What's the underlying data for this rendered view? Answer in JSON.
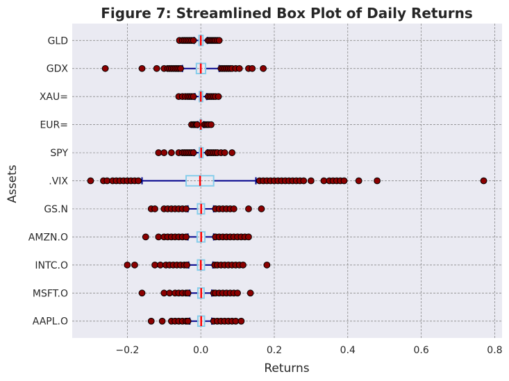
{
  "chart_data": {
    "type": "boxplot",
    "orientation": "horizontal",
    "title": "Figure 7: Streamlined Box Plot of Daily Returns",
    "xlabel": "Returns",
    "ylabel": "Assets",
    "xlim": [
      -0.35,
      0.82
    ],
    "xticks": [
      -0.2,
      0.0,
      0.2,
      0.4,
      0.6,
      0.8
    ],
    "xtick_labels": [
      "−0.2",
      "0.0",
      "0.2",
      "0.4",
      "0.6",
      "0.8"
    ],
    "grid": true,
    "categories": [
      "GLD",
      "GDX",
      "XAU=",
      "EUR=",
      "SPY",
      ".VIX",
      "GS.N",
      "AMZN.O",
      "INTC.O",
      "MSFT.O",
      "AAPL.O"
    ],
    "colors": {
      "plot_background": "#eaeaf2",
      "grid": "#7a7a7a",
      "box": "#87ceeb",
      "whisker": "#00008b",
      "median": "#ff0000",
      "outlier_fill": "#8b0000",
      "outlier_edge": "#000000"
    },
    "boxes": [
      {
        "name": "GLD",
        "q1": -0.005,
        "median": 0.0,
        "q3": 0.006,
        "whislo": -0.018,
        "whishi": 0.018,
        "outliers": [
          -0.058,
          -0.05,
          -0.045,
          -0.04,
          -0.035,
          -0.03,
          -0.025,
          -0.02,
          0.02,
          0.024,
          0.028,
          0.032,
          0.036,
          0.04,
          0.045,
          0.05
        ]
      },
      {
        "name": "GDX",
        "q1": -0.012,
        "median": 0.0,
        "q3": 0.013,
        "whislo": -0.05,
        "whishi": 0.05,
        "outliers": [
          -0.26,
          -0.16,
          -0.12,
          -0.1,
          -0.09,
          -0.085,
          -0.08,
          -0.075,
          -0.07,
          -0.065,
          -0.06,
          -0.055,
          0.055,
          0.06,
          0.065,
          0.07,
          0.075,
          0.08,
          0.085,
          0.095,
          0.105,
          0.13,
          0.14,
          0.17
        ]
      },
      {
        "name": "XAU=",
        "q1": -0.004,
        "median": 0.0,
        "q3": 0.005,
        "whislo": -0.016,
        "whishi": 0.016,
        "outliers": [
          -0.06,
          -0.05,
          -0.042,
          -0.035,
          -0.03,
          -0.025,
          -0.02,
          0.02,
          0.025,
          0.03,
          0.035,
          0.04,
          0.048
        ]
      },
      {
        "name": "EUR=",
        "q1": -0.002,
        "median": 0.0,
        "q3": 0.002,
        "whislo": -0.008,
        "whishi": 0.008,
        "outliers": [
          -0.025,
          -0.02,
          -0.016,
          -0.012,
          -0.01,
          0.01,
          0.014,
          0.018,
          0.022,
          0.028
        ]
      },
      {
        "name": "SPY",
        "q1": -0.004,
        "median": 0.001,
        "q3": 0.006,
        "whislo": -0.018,
        "whishi": 0.018,
        "outliers": [
          -0.115,
          -0.1,
          -0.08,
          -0.06,
          -0.05,
          -0.045,
          -0.04,
          -0.035,
          -0.03,
          -0.025,
          -0.02,
          0.02,
          0.025,
          0.03,
          0.035,
          0.04,
          0.045,
          0.055,
          0.065,
          0.085
        ]
      },
      {
        "name": ".VIX",
        "q1": -0.04,
        "median": -0.002,
        "q3": 0.035,
        "whislo": -0.16,
        "whishi": 0.15,
        "outliers": [
          -0.3,
          -0.265,
          -0.255,
          -0.24,
          -0.23,
          -0.22,
          -0.21,
          -0.2,
          -0.19,
          -0.18,
          -0.17,
          0.16,
          0.17,
          0.18,
          0.19,
          0.2,
          0.21,
          0.22,
          0.23,
          0.24,
          0.25,
          0.26,
          0.27,
          0.28,
          0.3,
          0.335,
          0.35,
          0.36,
          0.37,
          0.38,
          0.39,
          0.43,
          0.48,
          0.77
        ]
      },
      {
        "name": "GS.N",
        "q1": -0.009,
        "median": 0.001,
        "q3": 0.01,
        "whislo": -0.035,
        "whishi": 0.035,
        "outliers": [
          -0.135,
          -0.125,
          -0.1,
          -0.09,
          -0.08,
          -0.07,
          -0.06,
          -0.05,
          -0.04,
          0.04,
          0.05,
          0.06,
          0.07,
          0.08,
          0.09,
          0.13,
          0.165
        ]
      },
      {
        "name": "AMZN.O",
        "q1": -0.01,
        "median": 0.001,
        "q3": 0.011,
        "whislo": -0.035,
        "whishi": 0.035,
        "outliers": [
          -0.15,
          -0.115,
          -0.1,
          -0.09,
          -0.08,
          -0.07,
          -0.06,
          -0.05,
          -0.04,
          0.04,
          0.05,
          0.06,
          0.07,
          0.08,
          0.09,
          0.1,
          0.11,
          0.12,
          0.13
        ]
      },
      {
        "name": "INTC.O",
        "q1": -0.009,
        "median": 0.0,
        "q3": 0.01,
        "whislo": -0.033,
        "whishi": 0.033,
        "outliers": [
          -0.2,
          -0.18,
          -0.125,
          -0.11,
          -0.095,
          -0.085,
          -0.075,
          -0.065,
          -0.055,
          -0.045,
          -0.038,
          0.038,
          0.045,
          0.055,
          0.065,
          0.075,
          0.085,
          0.095,
          0.105,
          0.115,
          0.18
        ]
      },
      {
        "name": "MSFT.O",
        "q1": -0.008,
        "median": 0.001,
        "q3": 0.009,
        "whislo": -0.03,
        "whishi": 0.03,
        "outliers": [
          -0.16,
          -0.1,
          -0.085,
          -0.07,
          -0.06,
          -0.05,
          -0.04,
          -0.035,
          0.035,
          0.04,
          0.05,
          0.06,
          0.07,
          0.08,
          0.09,
          0.1,
          0.135
        ]
      },
      {
        "name": "AAPL.O",
        "q1": -0.008,
        "median": 0.001,
        "q3": 0.01,
        "whislo": -0.03,
        "whishi": 0.03,
        "outliers": [
          -0.135,
          -0.105,
          -0.08,
          -0.07,
          -0.06,
          -0.05,
          -0.04,
          -0.035,
          0.035,
          0.045,
          0.055,
          0.065,
          0.075,
          0.085,
          0.095,
          0.11
        ]
      }
    ]
  }
}
